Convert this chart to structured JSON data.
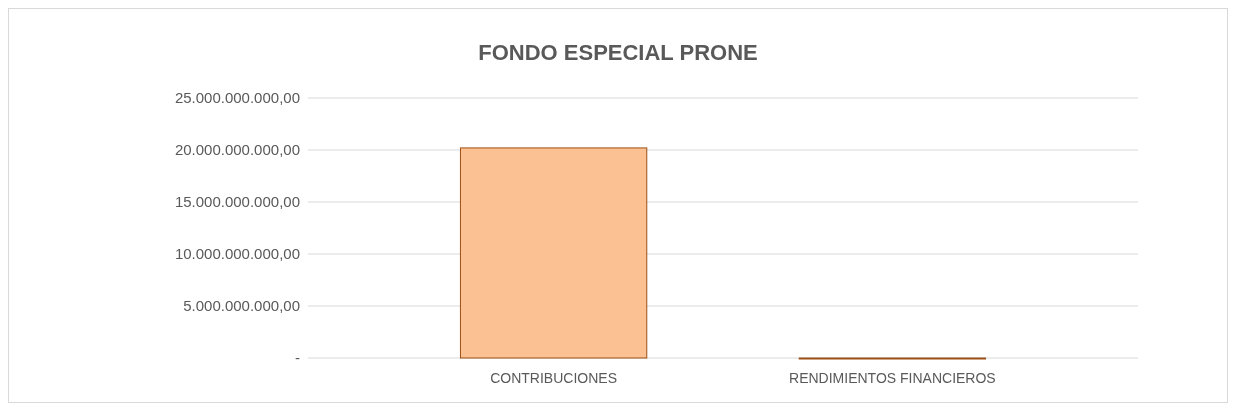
{
  "chart_data": {
    "type": "bar",
    "title": "FONDO ESPECIAL PRONE",
    "categories": [
      "CONTRIBUCIONES",
      "RENDIMIENTOS FINANCIEROS"
    ],
    "values": [
      20200000000,
      0
    ],
    "color": "#fbc192",
    "ylim": [
      0,
      25000000000
    ],
    "yticks": [
      {
        "value": 0,
        "label": "-"
      },
      {
        "value": 5000000000,
        "label": "5.000.000.000,00"
      },
      {
        "value": 10000000000,
        "label": "10.000.000.000,00"
      },
      {
        "value": 15000000000,
        "label": "15.000.000.000,00"
      },
      {
        "value": 20000000000,
        "label": "20.000.000.000,00"
      },
      {
        "value": 25000000000,
        "label": "25.000.000.000,00"
      }
    ],
    "grid": true
  }
}
